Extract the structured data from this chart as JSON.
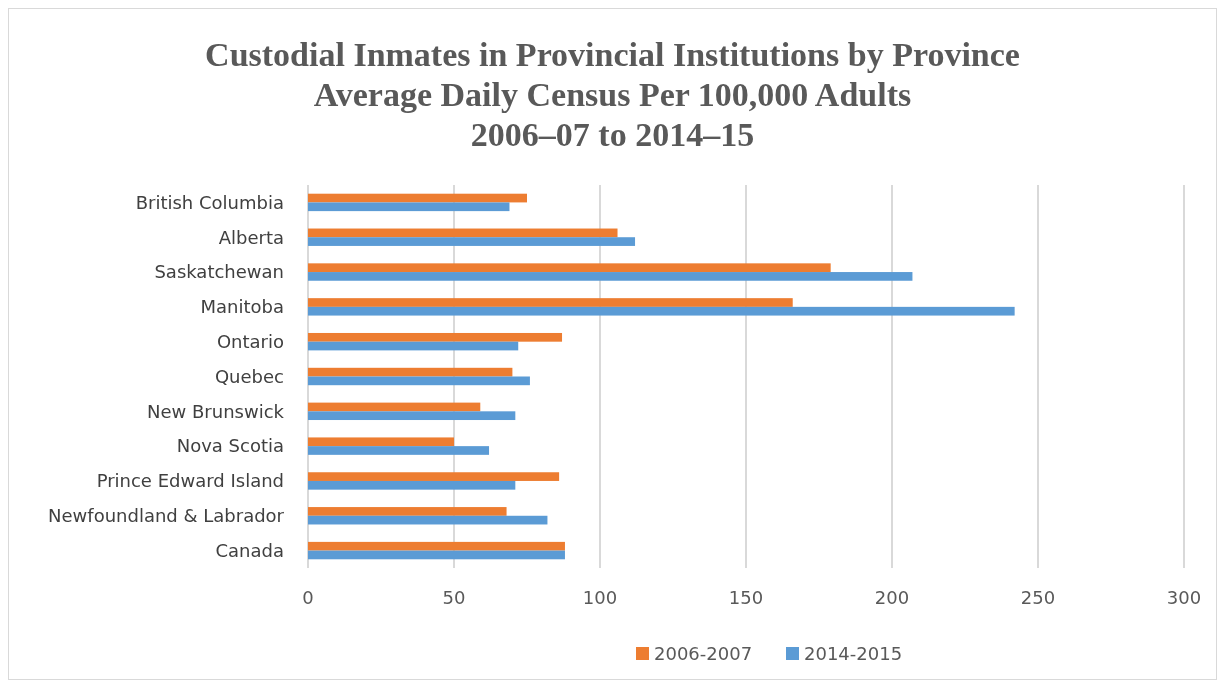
{
  "chart_data": {
    "type": "bar",
    "orientation": "horizontal",
    "title": "Custodial Inmates in Provincial Institutions by Province\nAverage Daily Census Per 100,000 Adults\n2006–07 to 2014–15",
    "categories": [
      "British Columbia",
      "Alberta",
      "Saskatchewan",
      "Manitoba",
      "Ontario",
      "Quebec",
      "New Brunswick",
      "Nova Scotia",
      "Prince Edward Island",
      "Newfoundland & Labrador",
      "Canada"
    ],
    "series": [
      {
        "name": "2006-2007",
        "color": "#ed7d31",
        "values": [
          75,
          106,
          179,
          166,
          87,
          70,
          59,
          50,
          86,
          68,
          88
        ]
      },
      {
        "name": "2014-2015",
        "color": "#5b9bd5",
        "values": [
          69,
          112,
          207,
          242,
          72,
          76,
          71,
          62,
          71,
          82,
          88
        ]
      }
    ],
    "xlim": [
      0,
      300
    ],
    "xticks": [
      0,
      50,
      100,
      150,
      200,
      250,
      300
    ],
    "grid": "x",
    "legend": "bottom"
  }
}
